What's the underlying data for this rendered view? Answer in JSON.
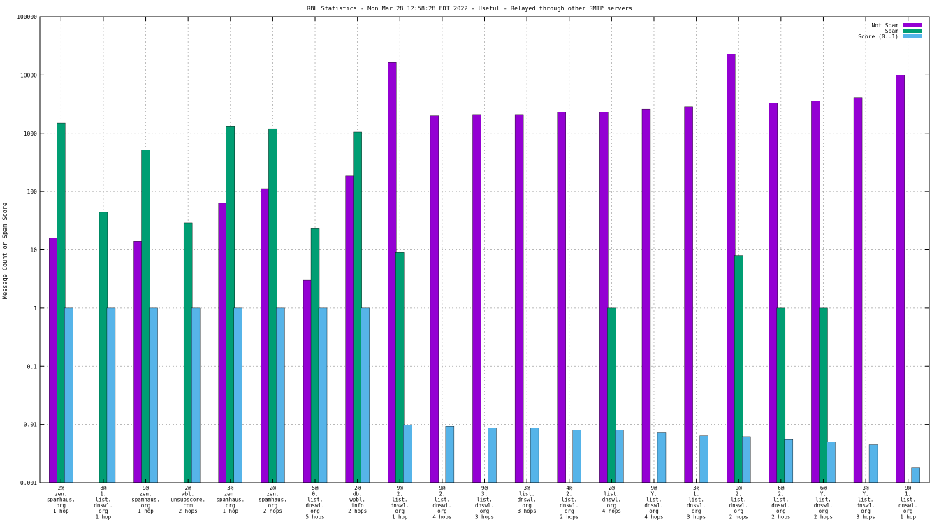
{
  "chart_data": {
    "type": "bar",
    "title": "RBL Statistics - Mon Mar 28 12:58:28 EDT 2022 - Useful - Relayed through other SMTP servers",
    "xlabel": "",
    "ylabel": "Message Count or Spam Score",
    "yscale": "log",
    "ylim": [
      0.001,
      100000
    ],
    "grid": true,
    "legend_position": "top-right",
    "y_ticks": [
      "0.001",
      "0.01",
      "0.1",
      "1",
      "10",
      "100",
      "1000",
      "10000",
      "100000"
    ],
    "categories": [
      [
        "2@",
        "zen.",
        "spamhaus.",
        "org",
        "1 hop"
      ],
      [
        "8@",
        "1.",
        "list.",
        "dnswl.",
        "org",
        "1 hop"
      ],
      [
        "9@",
        "zen.",
        "spamhaus.",
        "org",
        "1 hop"
      ],
      [
        "2@",
        "wbl.",
        "unsubscore.",
        "com",
        "2 hops"
      ],
      [
        "3@",
        "zen.",
        "spamhaus.",
        "org",
        "1 hop"
      ],
      [
        "2@",
        "zen.",
        "spamhaus.",
        "org",
        "2 hops"
      ],
      [
        "5@",
        "0.",
        "list.",
        "dnswl.",
        "org",
        "5 hops"
      ],
      [
        "2@",
        "db.",
        "wpbl.",
        "info",
        "2 hops"
      ],
      [
        "9@",
        "2.",
        "list.",
        "dnswl.",
        "org",
        "1 hop"
      ],
      [
        "9@",
        "2.",
        "list.",
        "dnswl.",
        "org",
        "4 hops"
      ],
      [
        "9@",
        "3.",
        "list.",
        "dnswl.",
        "org",
        "3 hops"
      ],
      [
        "3@",
        "list.",
        "dnswl.",
        "org",
        "3 hops"
      ],
      [
        "4@",
        "2.",
        "list.",
        "dnswl.",
        "org",
        "2 hops"
      ],
      [
        "2@",
        "list.",
        "dnswl.",
        "org",
        "4 hops"
      ],
      [
        "9@",
        "Y.",
        "list.",
        "dnswl.",
        "org",
        "4 hops"
      ],
      [
        "3@",
        "1.",
        "list.",
        "dnswl.",
        "org",
        "3 hops"
      ],
      [
        "9@",
        "2.",
        "list.",
        "dnswl.",
        "org",
        "2 hops"
      ],
      [
        "6@",
        "2.",
        "list.",
        "dnswl.",
        "org",
        "2 hops"
      ],
      [
        "6@",
        "Y.",
        "list.",
        "dnswl.",
        "org",
        "2 hops"
      ],
      [
        "3@",
        "Y.",
        "list.",
        "dnswl.",
        "org",
        "3 hops"
      ],
      [
        "9@",
        "1.",
        "list.",
        "dnswl.",
        "org",
        "1 hop"
      ]
    ],
    "series": [
      {
        "name": "Not Spam",
        "color": "#9400d3",
        "values": [
          16,
          null,
          14,
          null,
          63,
          112,
          3,
          185,
          16500,
          2000,
          2100,
          2100,
          2300,
          2300,
          2600,
          2850,
          23000,
          3300,
          3600,
          4100,
          9900
        ]
      },
      {
        "name": "Spam",
        "color": "#009e73",
        "values": [
          1500,
          44,
          520,
          29,
          1300,
          1200,
          23,
          1050,
          9,
          null,
          null,
          null,
          null,
          1,
          null,
          null,
          8,
          1,
          1,
          null,
          null
        ]
      },
      {
        "name": "Score (0..1)",
        "color": "#56b4e9",
        "values": [
          1,
          1,
          1,
          1,
          1,
          1,
          1,
          1,
          0.0097,
          0.0093,
          0.0088,
          0.0088,
          0.0081,
          0.0081,
          0.0072,
          0.0064,
          0.0062,
          0.0055,
          0.005,
          0.0045,
          0.0018
        ]
      }
    ]
  }
}
